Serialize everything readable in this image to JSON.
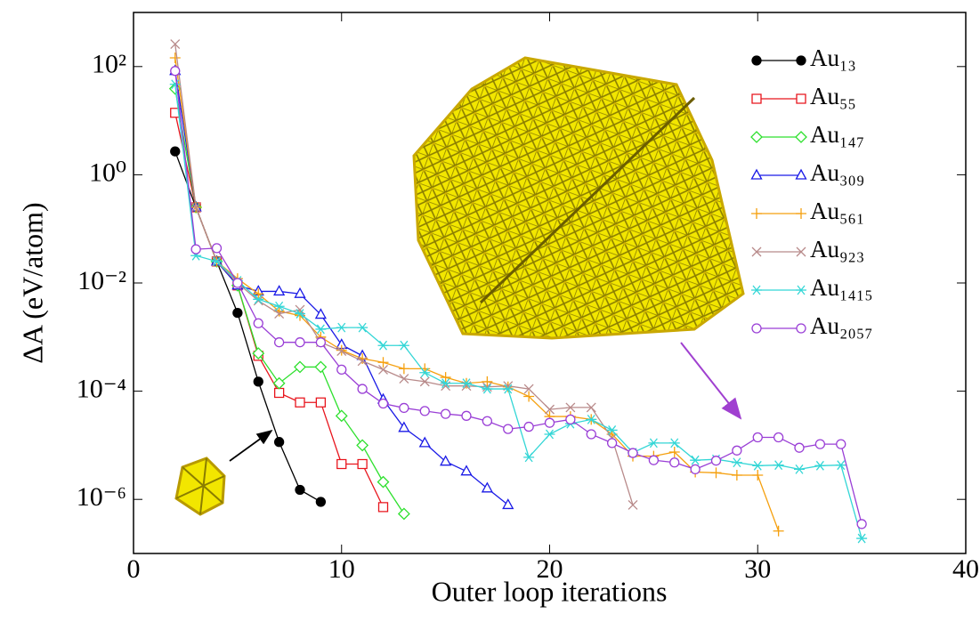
{
  "chart_data": {
    "type": "line",
    "x_label": "Outer loop iterations",
    "y_label": "ΔA (eV/atom)",
    "xlim": [
      0,
      40
    ],
    "xticks": [
      0,
      10,
      20,
      30,
      40
    ],
    "ylim": [
      1e-07,
      1000
    ],
    "y_scale": "log",
    "yticks": [
      {
        "value": 100,
        "label": "10²"
      },
      {
        "value": 1,
        "label": "10⁰"
      },
      {
        "value": 0.01,
        "label": "10⁻²"
      },
      {
        "value": 0.0001,
        "label": "10⁻⁴"
      },
      {
        "value": 1e-06,
        "label": "10⁻⁶"
      }
    ],
    "legend": "upper right",
    "series": [
      {
        "name": "Au₁₃",
        "color": "#000000",
        "marker": "filled-circle",
        "x": [
          2,
          3,
          4,
          5,
          6,
          7,
          8,
          9
        ],
        "values": [
          2.7,
          0.25,
          0.025,
          0.0028,
          0.00015,
          1.15e-05,
          1.5e-06,
          9e-07
        ]
      },
      {
        "name": "Au₅₅",
        "color": "#e8141c",
        "marker": "square",
        "x": [
          2,
          3,
          4,
          5,
          6,
          7,
          8,
          9,
          10,
          11,
          12
        ],
        "values": [
          14,
          0.25,
          0.025,
          0.009,
          0.00045,
          9.3e-05,
          6.2e-05,
          6.2e-05,
          4.5e-06,
          4.5e-06,
          7.2e-07
        ]
      },
      {
        "name": "Au₁₄₇",
        "color": "#2ee02e",
        "marker": "diamond",
        "x": [
          2,
          3,
          4,
          5,
          6,
          7,
          8,
          9,
          10,
          11,
          12,
          13
        ],
        "values": [
          39,
          0.25,
          0.025,
          0.009,
          0.0005,
          0.00014,
          0.00028,
          0.00028,
          3.5e-05,
          1e-05,
          2.1e-06,
          5.4e-07
        ]
      },
      {
        "name": "Au₃₀₉",
        "color": "#1a1ae6",
        "marker": "triangle",
        "x": [
          2,
          3,
          4,
          5,
          6,
          7,
          8,
          9,
          10,
          11,
          12,
          13,
          14,
          15,
          16,
          17,
          18
        ],
        "values": [
          83,
          0.25,
          0.025,
          0.009,
          0.007,
          0.007,
          0.0063,
          0.0026,
          0.00072,
          0.00045,
          7e-05,
          2.1e-05,
          1.1e-05,
          5e-06,
          3.3e-06,
          1.6e-06,
          7.9e-07
        ]
      },
      {
        "name": "Au₅₆₁",
        "color": "#f5a00f",
        "marker": "plus",
        "x": [
          2,
          3,
          4,
          5,
          6,
          7,
          8,
          9,
          10,
          11,
          12,
          13,
          14,
          15,
          16,
          17,
          18,
          19,
          20,
          21,
          22,
          23,
          24,
          25,
          26,
          27,
          28,
          29,
          30,
          31
        ],
        "values": [
          145,
          0.25,
          0.025,
          0.012,
          0.0063,
          0.003,
          0.0025,
          0.001,
          0.00057,
          0.0004,
          0.00034,
          0.00026,
          0.00026,
          0.00018,
          0.00014,
          0.00015,
          0.00012,
          8e-05,
          3.4e-05,
          3.4e-05,
          3e-05,
          1.6e-05,
          6.3e-06,
          6.3e-06,
          7.5e-06,
          3.2e-06,
          3.1e-06,
          2.8e-06,
          2.8e-06,
          2.6e-07
        ]
      },
      {
        "name": "Au₉₂₃",
        "color": "#b88a8a",
        "marker": "cross",
        "x": [
          2,
          3,
          4,
          5,
          6,
          7,
          8,
          9,
          10,
          11,
          12,
          13,
          14,
          15,
          16,
          17,
          18,
          19,
          20,
          21,
          22,
          23,
          24
        ],
        "values": [
          260,
          0.25,
          0.025,
          0.01,
          0.0047,
          0.0027,
          0.0032,
          0.0008,
          0.00055,
          0.00036,
          0.00025,
          0.00017,
          0.00015,
          0.000125,
          0.000125,
          0.00012,
          0.000125,
          0.00011,
          4.6e-05,
          5e-05,
          5e-05,
          1.35e-05,
          7.9e-07
        ]
      },
      {
        "name": "Au₁₄₁₅",
        "color": "#33d6d6",
        "marker": "asterisk",
        "x": [
          2,
          3,
          4,
          5,
          6,
          7,
          8,
          9,
          10,
          11,
          12,
          13,
          14,
          15,
          16,
          17,
          18,
          19,
          20,
          21,
          22,
          23,
          24,
          25,
          26,
          27,
          28,
          29,
          30,
          31,
          32,
          33,
          34,
          35
        ],
        "values": [
          47,
          0.032,
          0.025,
          0.011,
          0.005,
          0.0037,
          0.0027,
          0.0014,
          0.0015,
          0.0015,
          0.0007,
          0.0007,
          0.00022,
          0.00014,
          0.00014,
          0.00011,
          0.00011,
          6e-06,
          1.6e-05,
          2.5e-05,
          3e-05,
          1.9e-05,
          7.3e-06,
          1.1e-05,
          1.1e-05,
          5.3e-06,
          5.5e-06,
          4.8e-06,
          4.2e-06,
          4.3e-06,
          3.6e-06,
          4.2e-06,
          4.3e-06,
          1.9e-07
        ]
      },
      {
        "name": "Au₂₀₅₇",
        "color": "#9a3fd6",
        "marker": "circle",
        "x": [
          2,
          3,
          4,
          5,
          6,
          7,
          8,
          9,
          10,
          11,
          12,
          13,
          14,
          15,
          16,
          17,
          18,
          19,
          20,
          21,
          22,
          23,
          24,
          25,
          26,
          27,
          28,
          29,
          30,
          31,
          32,
          33,
          34,
          35
        ],
        "values": [
          83,
          0.042,
          0.044,
          0.01,
          0.0018,
          0.0008,
          0.0008,
          0.0008,
          0.00025,
          0.00011,
          5.9e-05,
          4.9e-05,
          4.3e-05,
          3.8e-05,
          3.5e-05,
          2.8e-05,
          2e-05,
          2.2e-05,
          2.6e-05,
          3e-05,
          1.6e-05,
          1.1e-05,
          7.2e-06,
          5.3e-06,
          4.8e-06,
          3.6e-06,
          5.2e-06,
          8e-06,
          1.4e-05,
          1.4e-05,
          9e-06,
          1.05e-05,
          1.05e-05,
          3.5e-07
        ]
      }
    ]
  }
}
